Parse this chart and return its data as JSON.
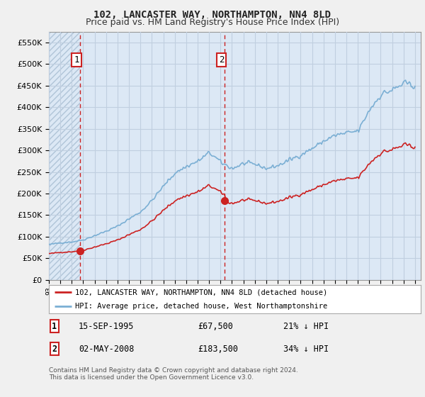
{
  "title": "102, LANCASTER WAY, NORTHAMPTON, NN4 8LD",
  "subtitle": "Price paid vs. HM Land Registry's House Price Index (HPI)",
  "title_fontsize": 10,
  "subtitle_fontsize": 9,
  "ylim": [
    0,
    575000
  ],
  "yticks": [
    0,
    50000,
    100000,
    150000,
    200000,
    250000,
    300000,
    350000,
    400000,
    450000,
    500000,
    550000
  ],
  "ytick_labels": [
    "£0",
    "£50K",
    "£100K",
    "£150K",
    "£200K",
    "£250K",
    "£300K",
    "£350K",
    "£400K",
    "£450K",
    "£500K",
    "£550K"
  ],
  "xlim_start": 1993.0,
  "xlim_end": 2025.5,
  "sale1_date_num": 1995.71,
  "sale1_price": 67500,
  "sale2_date_num": 2008.37,
  "sale2_price": 183500,
  "hpi_color": "#7bafd4",
  "price_color": "#cc2222",
  "vline_color": "#cc2222",
  "grid_color": "#c0cfe0",
  "plot_bg_color": "#dce8f5",
  "hatch_color": "#b0c4d8",
  "background_color": "#f0f0f0",
  "legend1_text": "102, LANCASTER WAY, NORTHAMPTON, NN4 8LD (detached house)",
  "legend2_text": "HPI: Average price, detached house, West Northamptonshire",
  "table_row1": [
    "1",
    "15-SEP-1995",
    "£67,500",
    "21% ↓ HPI"
  ],
  "table_row2": [
    "2",
    "02-MAY-2008",
    "£183,500",
    "34% ↓ HPI"
  ],
  "footer": "Contains HM Land Registry data © Crown copyright and database right 2024.\nThis data is licensed under the Open Government Licence v3.0."
}
